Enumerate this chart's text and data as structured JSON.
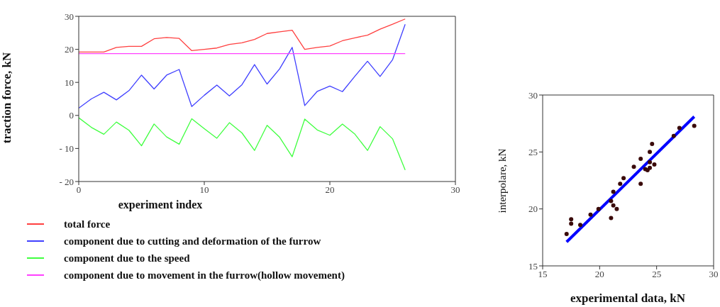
{
  "chart_data": [
    {
      "type": "line",
      "xlabel": "experiment index",
      "ylabel": "traction force, kN",
      "x": [
        0,
        1,
        2,
        3,
        4,
        5,
        6,
        7,
        8,
        9,
        10,
        11,
        12,
        13,
        14,
        15,
        16,
        17,
        18,
        19,
        20,
        21,
        22,
        23,
        24,
        25,
        26
      ],
      "xlim": [
        0,
        30
      ],
      "xticks": [
        0,
        10,
        20,
        30
      ],
      "ylim": [
        -20,
        30
      ],
      "yticks": [
        {
          "value": -20,
          "label": "- 20"
        },
        {
          "value": -10,
          "label": "- 10"
        },
        0,
        10,
        20,
        30
      ],
      "legend": "bottom",
      "line_style": "solid",
      "series": [
        {
          "name": "total force",
          "color": "#ff4040",
          "values": [
            19.2,
            19.2,
            19.2,
            20.6,
            20.9,
            20.9,
            23.2,
            23.6,
            23.3,
            19.6,
            20,
            20.4,
            21.5,
            22,
            23,
            24.8,
            25.3,
            25.8,
            20,
            20.6,
            21,
            22.6,
            23.5,
            24.3,
            26.1,
            27.6,
            29.2
          ]
        },
        {
          "name": "component due to cutting and deformation of the furrow",
          "color": "#4040ff",
          "values": [
            2.2,
            5,
            7,
            4.7,
            7.5,
            12.2,
            8,
            12.2,
            13.9,
            2.7,
            6.1,
            9.2,
            5.9,
            9.3,
            15.4,
            9.5,
            14.1,
            20.6,
            3,
            7.3,
            8.9,
            7.2,
            11.9,
            16.4,
            11.8,
            16.9,
            27.6
          ]
        },
        {
          "name": "component due to the speed",
          "color": "#40ff40",
          "values": [
            -0.7,
            -3.6,
            -5.7,
            -2,
            -4.5,
            -9.2,
            -2.6,
            -6.5,
            -8.7,
            -1,
            -4,
            -6.9,
            -2.2,
            -5.3,
            -10.6,
            -3,
            -6.6,
            -12.5,
            -1.1,
            -4.4,
            -6,
            -2.6,
            -5.7,
            -10.6,
            -3.4,
            -7.1,
            -16.5
          ]
        },
        {
          "name": "component due to movement in the furrow(hollow movement)",
          "color": "#ff40ff",
          "values": [
            18.7,
            18.7,
            18.7,
            18.7,
            18.7,
            18.7,
            18.7,
            18.7,
            18.7,
            18.7,
            18.7,
            18.7,
            18.7,
            18.7,
            18.7,
            18.7,
            18.7,
            18.7,
            18.7,
            18.7,
            18.7,
            18.7,
            18.7,
            18.7,
            18.7,
            18.7,
            18.7
          ]
        }
      ]
    },
    {
      "type": "scatter",
      "xlabel": "experimental data, kN",
      "ylabel": "interpolare, kN",
      "xlim": [
        15,
        30
      ],
      "xticks": [
        15,
        20,
        25,
        30
      ],
      "ylim": [
        15,
        30
      ],
      "yticks": [
        15,
        20,
        25,
        30
      ],
      "series": [
        {
          "marker": "circle",
          "color": "#3a0a0a",
          "x": [
            17.1,
            17.5,
            17.5,
            18.3,
            19.2,
            19.9,
            21.0,
            21.0,
            21.2,
            21.2,
            21.5,
            21.8,
            22.1,
            23.0,
            23.6,
            23.6,
            24.0,
            24.2,
            24.4,
            24.4,
            24.4,
            24.6,
            24.8,
            26.5,
            27.0,
            28.3
          ],
          "values": [
            17.8,
            19.1,
            18.7,
            18.6,
            19.5,
            20.0,
            20.7,
            19.2,
            21.5,
            20.3,
            20.0,
            22.2,
            22.7,
            23.7,
            24.4,
            22.2,
            23.5,
            23.4,
            23.6,
            25.0,
            24.1,
            25.7,
            23.9,
            26.4,
            27.1,
            27.3
          ]
        },
        {
          "type": "line",
          "color": "#0000ff",
          "x": [
            17.1,
            28.3
          ],
          "values": [
            17.1,
            28.1
          ]
        }
      ]
    }
  ]
}
